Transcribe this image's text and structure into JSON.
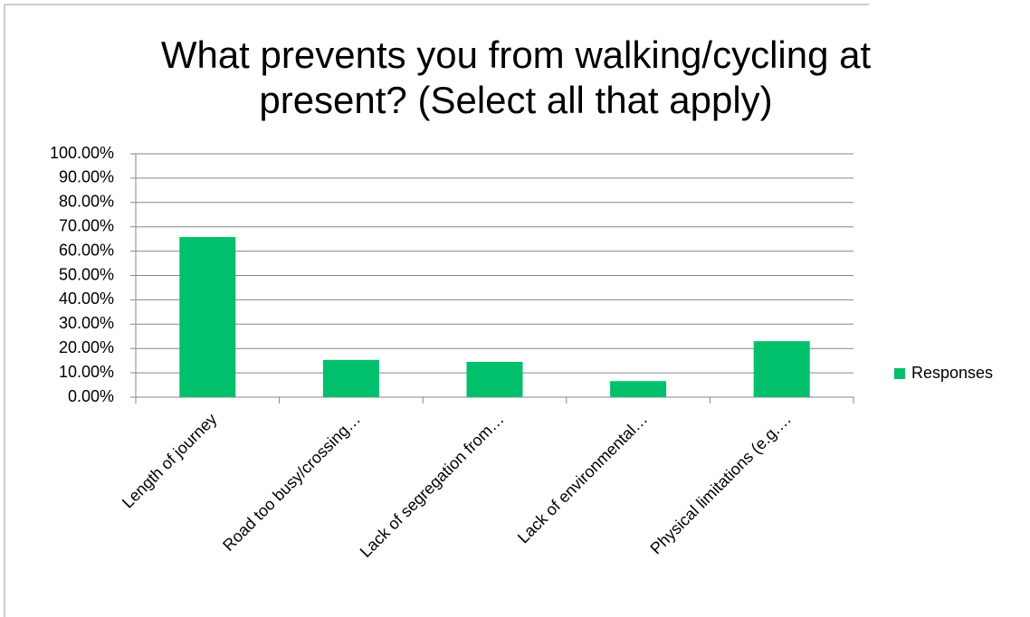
{
  "chart_data": {
    "type": "bar",
    "title": "What prevents you from walking/cycling at present? (Select all that apply)",
    "categories": [
      "Length of journey",
      "Road too busy/crossing…",
      "Lack of segregation from…",
      "Lack of environmental…",
      "Physical limitations (e.g.…"
    ],
    "series": [
      {
        "name": "Responses",
        "color": "#00c06b",
        "values": [
          65.8,
          15.3,
          14.5,
          6.6,
          23.0
        ]
      }
    ],
    "ylim": [
      0,
      100
    ],
    "yticks": [
      {
        "value": 0,
        "label": "0.00%"
      },
      {
        "value": 10,
        "label": "10.00%"
      },
      {
        "value": 20,
        "label": "20.00%"
      },
      {
        "value": 30,
        "label": "30.00%"
      },
      {
        "value": 40,
        "label": "40.00%"
      },
      {
        "value": 50,
        "label": "50.00%"
      },
      {
        "value": 60,
        "label": "60.00%"
      },
      {
        "value": 70,
        "label": "70.00%"
      },
      {
        "value": 80,
        "label": "80.00%"
      },
      {
        "value": 90,
        "label": "90.00%"
      },
      {
        "value": 100,
        "label": "100.00%"
      }
    ],
    "grid": true,
    "legend": "right"
  }
}
